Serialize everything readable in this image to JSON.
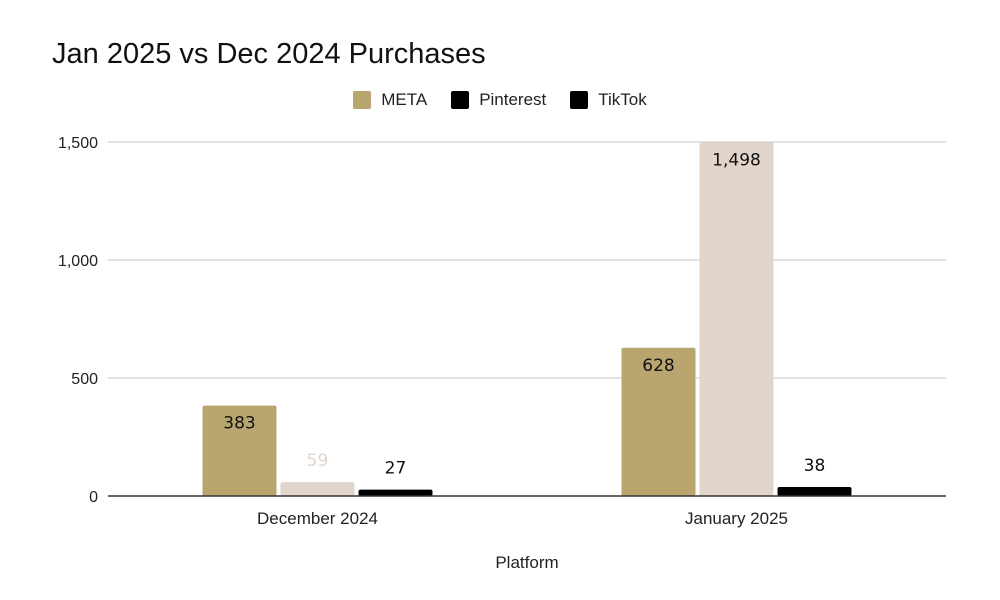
{
  "chart_data": {
    "type": "bar",
    "title": "Jan 2025 vs Dec 2024 Purchases",
    "xlabel": "Platform",
    "ylabel": "",
    "categories": [
      "December 2024",
      "January 2025"
    ],
    "ylim": [
      0,
      1500
    ],
    "yticks": [
      0,
      500,
      1000,
      1500
    ],
    "ytick_labels": [
      "0",
      "500",
      "1,000",
      "1,500"
    ],
    "grid": true,
    "legend_position": "top",
    "legend": [
      {
        "name": "META",
        "color": "#b9a66f"
      },
      {
        "name": "Pinterest",
        "color": "#000000"
      },
      {
        "name": "TikTok",
        "color": "#000000"
      }
    ],
    "series": [
      {
        "name": "META",
        "color": "#b9a66f",
        "label_color": "#111111",
        "values": [
          383,
          628
        ],
        "labels": [
          "383",
          "628"
        ]
      },
      {
        "name": "Pinterest",
        "color": "#e2d6cc",
        "label_color_outside": "#e2d6cc",
        "values": [
          59,
          1498
        ],
        "labels": [
          "59",
          "1,498"
        ]
      },
      {
        "name": "TikTok",
        "color": "#000000",
        "label_color": "#111111",
        "values": [
          27,
          38
        ],
        "labels": [
          "27",
          "38"
        ]
      }
    ]
  }
}
